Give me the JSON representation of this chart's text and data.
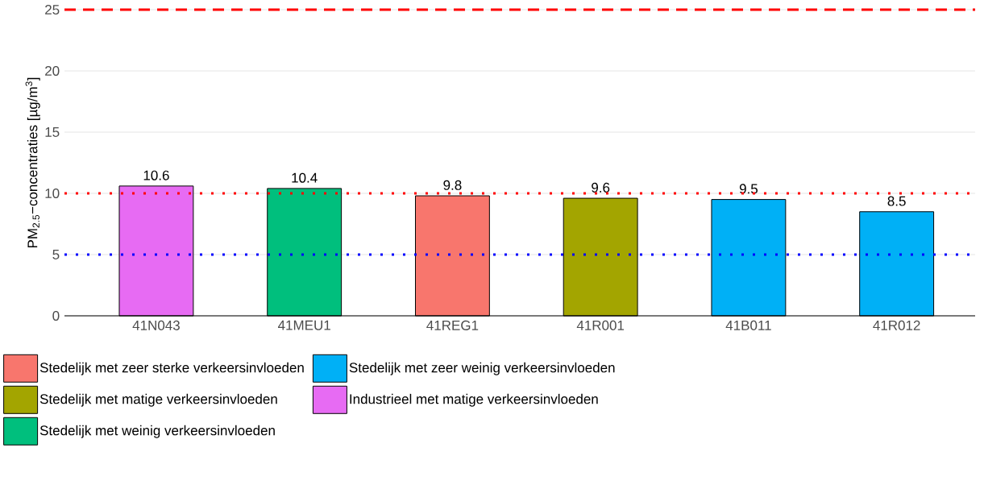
{
  "chart_data": {
    "type": "bar",
    "ylabel": "PM$_{2.5}$−concentraties [µg/m$^{3}$]",
    "categories": [
      "41N043",
      "41MEU1",
      "41REG1",
      "41R001",
      "41B011",
      "41R012"
    ],
    "stacked": true,
    "series": [
      {
        "name": "Stedelijk met zeer sterke verkeersinvloeden",
        "color": "#f8766d",
        "values": [
          null,
          null,
          9.8,
          null,
          null,
          null
        ]
      },
      {
        "name": "Stedelijk met matige verkeersinvloeden",
        "color": "#a3a500",
        "values": [
          null,
          null,
          null,
          9.6,
          null,
          null
        ]
      },
      {
        "name": "Stedelijk met weinig verkeersinvloeden",
        "color": "#00bf7d",
        "values": [
          null,
          10.4,
          null,
          null,
          null,
          null
        ]
      },
      {
        "name": "Stedelijk met zeer weinig verkeersinvloeden",
        "color": "#00b0f6",
        "values": [
          null,
          null,
          null,
          null,
          9.5,
          8.5
        ]
      },
      {
        "name": "Industrieel met matige verkeersinvloeden",
        "color": "#e76bf3",
        "values": [
          10.6,
          null,
          null,
          null,
          null,
          null
        ]
      }
    ],
    "ylim": [
      0,
      25
    ],
    "yticks": [
      0,
      5,
      10,
      15,
      20,
      25
    ],
    "grid": "y",
    "legend": "bottom",
    "data_labels": true,
    "ref_lines": [
      {
        "axis": "y",
        "value": 25,
        "color": "#ff0000",
        "line_style": "dashed"
      },
      {
        "axis": "y",
        "value": 10,
        "color": "#ff0000",
        "line_style": "dotted"
      },
      {
        "axis": "y",
        "value": 5,
        "color": "#0000ff",
        "line_style": "dotted"
      }
    ]
  }
}
